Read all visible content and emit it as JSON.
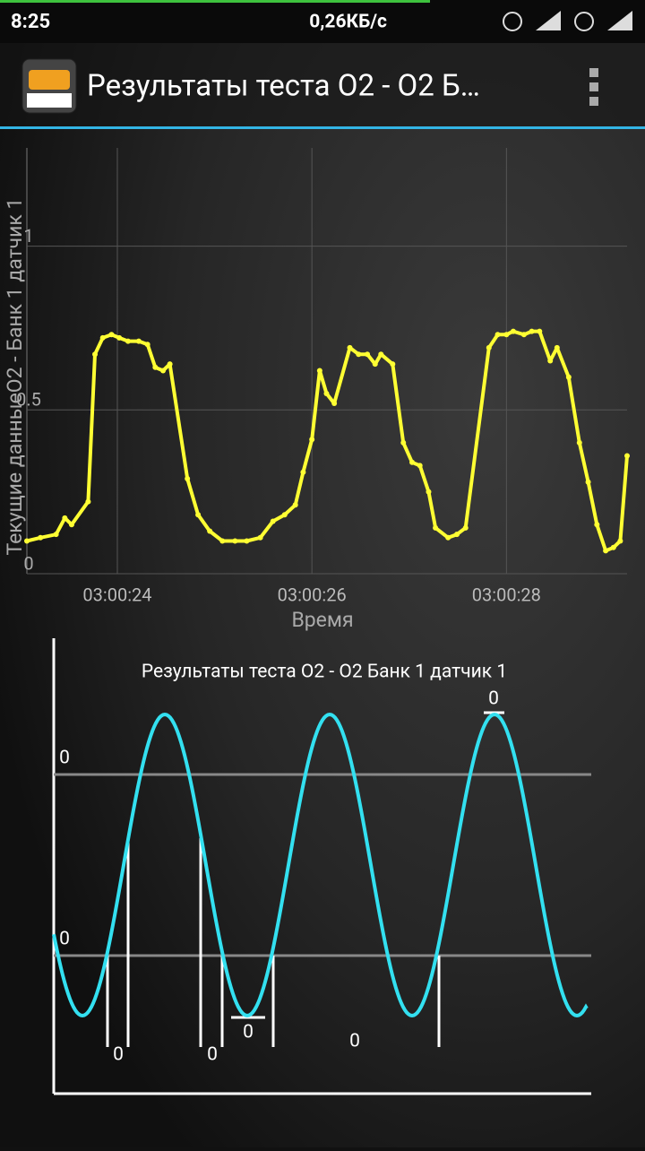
{
  "status_bar": {
    "time": "8:25",
    "speed": "0,26КБ/с"
  },
  "app_bar": {
    "title": "Результаты теста O2 - O2 Б…"
  },
  "chart_data": {
    "type": "line",
    "y_label": "Текущие данныеO2 - Банк 1 датчик 1",
    "x_label": "Время",
    "color": "#ffff33",
    "grid": true,
    "xlim": [
      23.07,
      29.24
    ],
    "ylim": [
      0,
      1.3
    ],
    "xticks": [
      {
        "value": 24,
        "label": "03:00:24"
      },
      {
        "value": 26,
        "label": "03:00:26"
      },
      {
        "value": 28,
        "label": "03:00:28"
      }
    ],
    "yticks": [
      0,
      0.5,
      1
    ],
    "x": [
      23.07,
      23.21,
      23.37,
      23.46,
      23.53,
      23.7,
      23.77,
      23.85,
      23.94,
      24.02,
      24.11,
      24.22,
      24.31,
      24.39,
      24.47,
      24.54,
      24.72,
      24.83,
      24.95,
      25.08,
      25.21,
      25.33,
      25.47,
      25.6,
      25.72,
      25.83,
      25.91,
      26.0,
      26.08,
      26.15,
      26.23,
      26.39,
      26.48,
      26.57,
      26.65,
      26.71,
      26.83,
      26.94,
      27.03,
      27.11,
      27.2,
      27.27,
      27.4,
      27.49,
      27.58,
      27.82,
      27.91,
      28.0,
      28.07,
      28.18,
      28.26,
      28.34,
      28.45,
      28.52,
      28.64,
      28.75,
      28.84,
      28.93,
      29.02,
      29.1,
      29.17,
      29.24
    ],
    "values": [
      0.1,
      0.11,
      0.12,
      0.17,
      0.15,
      0.22,
      0.67,
      0.72,
      0.73,
      0.72,
      0.71,
      0.71,
      0.7,
      0.63,
      0.62,
      0.64,
      0.29,
      0.18,
      0.13,
      0.1,
      0.1,
      0.1,
      0.11,
      0.16,
      0.18,
      0.21,
      0.31,
      0.41,
      0.62,
      0.55,
      0.52,
      0.69,
      0.67,
      0.67,
      0.64,
      0.67,
      0.64,
      0.4,
      0.34,
      0.33,
      0.25,
      0.14,
      0.11,
      0.12,
      0.14,
      0.69,
      0.73,
      0.73,
      0.74,
      0.73,
      0.74,
      0.74,
      0.65,
      0.69,
      0.6,
      0.4,
      0.28,
      0.15,
      0.07,
      0.08,
      0.1,
      0.36
    ]
  },
  "diagram": {
    "title": "Результаты теста O2 - O2 Банк 1 датчик 1",
    "labels": [
      "0",
      "0",
      "0",
      "0",
      "0",
      "0",
      "0"
    ]
  }
}
